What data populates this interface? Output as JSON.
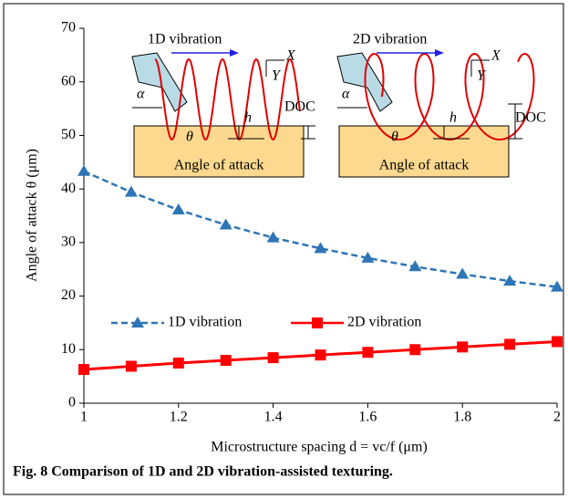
{
  "chart_data": {
    "type": "line",
    "x_label": "Microstructure spacing d = vc/f (μm)",
    "y_label": "Angle of attack θ (μm)",
    "caption": "Fig. 8 Comparison of 1D and 2D vibration-assisted texturing.",
    "x": [
      1,
      1.1,
      1.2,
      1.3,
      1.4,
      1.5,
      1.6,
      1.7,
      1.8,
      1.9,
      2
    ],
    "series": [
      {
        "name": "1D vibration",
        "color": "#2e75b6",
        "marker": "triangle",
        "dash": true,
        "values": [
          43.3,
          39.4,
          36.1,
          33.3,
          30.9,
          28.9,
          27.1,
          25.5,
          24.1,
          22.8,
          21.7
        ]
      },
      {
        "name": "2D vibration",
        "color": "#ff0000",
        "marker": "square",
        "dash": false,
        "values": [
          6.3,
          6.9,
          7.5,
          8.0,
          8.5,
          9.0,
          9.5,
          10.0,
          10.5,
          11.0,
          11.5
        ]
      }
    ],
    "xlim": [
      1,
      2
    ],
    "xticks": [
      1,
      1.2,
      1.4,
      1.6,
      1.8,
      2
    ],
    "ylim": [
      0,
      70
    ],
    "yticks": [
      0,
      10,
      20,
      30,
      40,
      50,
      60,
      70
    ],
    "grid": false,
    "insets": [
      {
        "title": "1D vibration",
        "x_axis": "X",
        "y_axis": "Y",
        "alpha": "α",
        "h": "h",
        "doc": "DOC",
        "theta": "θ",
        "label": "Angle of attack"
      },
      {
        "title": "2D vibration",
        "x_axis": "X",
        "y_axis": "Y",
        "alpha": "α",
        "h": "h",
        "doc": "DOC",
        "theta": "θ",
        "label": "Angle of attack"
      }
    ]
  }
}
